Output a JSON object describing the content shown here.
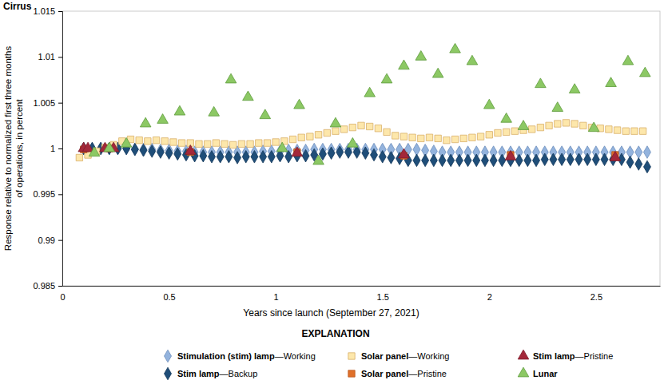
{
  "chart_data": {
    "type": "scatter",
    "title": "Cirrus",
    "xlabel": "Years since launch (September 27, 2021)",
    "ylabel": "Response relative to normalized first three months of operations, in percent",
    "legend_title": "EXPLANATION",
    "legend": "bottom",
    "grid": false,
    "xlim": [
      0,
      2.8
    ],
    "xticks": [
      0,
      0.5,
      1,
      1.5,
      2,
      2.5
    ],
    "ylim": [
      0.985,
      1.015
    ],
    "yticks": [
      0.985,
      0.99,
      0.995,
      1,
      1.005,
      1.01,
      1.015
    ],
    "series": [
      {
        "name": "Stimulation (stim) lamp—Working",
        "color": "#93b3dd",
        "marker": "diamond",
        "x": [
          0.1,
          0.14,
          0.18,
          0.22,
          0.26,
          0.3,
          0.34,
          0.38,
          0.42,
          0.46,
          0.5,
          0.54,
          0.58,
          0.62,
          0.66,
          0.7,
          0.74,
          0.78,
          0.82,
          0.86,
          0.9,
          0.94,
          0.98,
          1.02,
          1.06,
          1.1,
          1.14,
          1.18,
          1.22,
          1.26,
          1.3,
          1.34,
          1.38,
          1.42,
          1.46,
          1.5,
          1.54,
          1.58,
          1.62,
          1.66,
          1.7,
          1.74,
          1.78,
          1.82,
          1.86,
          1.9,
          1.94,
          1.98,
          2.02,
          2.06,
          2.1,
          2.14,
          2.18,
          2.22,
          2.26,
          2.3,
          2.34,
          2.38,
          2.42,
          2.46,
          2.5,
          2.54,
          2.58,
          2.62,
          2.66,
          2.7,
          2.74
        ],
        "values": [
          1.0,
          1.0,
          1.0,
          1.0,
          1.0,
          1.0,
          0.9999,
          0.9999,
          0.9999,
          0.9998,
          0.9998,
          0.9997,
          0.9997,
          0.9996,
          0.9996,
          0.9996,
          0.9996,
          0.9996,
          0.9996,
          0.9996,
          0.9996,
          0.9997,
          0.9997,
          0.9997,
          0.9998,
          0.9998,
          0.9998,
          0.9999,
          0.9999,
          0.9999,
          0.9999,
          0.9999,
          0.9999,
          0.9999,
          0.9999,
          0.9999,
          0.9999,
          0.9999,
          0.9999,
          0.9999,
          0.9998,
          0.9997,
          0.9996,
          0.9996,
          0.9996,
          0.9996,
          0.9996,
          0.9996,
          0.9996,
          0.9996,
          0.9996,
          0.9996,
          0.9996,
          0.9996,
          0.9996,
          0.9996,
          0.9996,
          0.9996,
          0.9996,
          0.9996,
          0.9996,
          0.9996,
          0.9996,
          0.9996,
          0.9996,
          0.9996,
          0.9996
        ]
      },
      {
        "name": "Stim lamp—Backup",
        "color": "#1f4e79",
        "marker": "diamond",
        "x": [
          0.1,
          0.14,
          0.18,
          0.22,
          0.26,
          0.3,
          0.34,
          0.38,
          0.42,
          0.46,
          0.5,
          0.54,
          0.58,
          0.62,
          0.66,
          0.7,
          0.74,
          0.78,
          0.82,
          0.86,
          0.9,
          0.94,
          0.98,
          1.02,
          1.06,
          1.1,
          1.14,
          1.18,
          1.22,
          1.26,
          1.3,
          1.34,
          1.38,
          1.42,
          1.46,
          1.5,
          1.54,
          1.58,
          1.62,
          1.66,
          1.7,
          1.74,
          1.78,
          1.82,
          1.86,
          1.9,
          1.94,
          1.98,
          2.02,
          2.06,
          2.1,
          2.14,
          2.18,
          2.22,
          2.26,
          2.3,
          2.34,
          2.38,
          2.42,
          2.46,
          2.5,
          2.54,
          2.58,
          2.62,
          2.66,
          2.7,
          2.74
        ],
        "values": [
          1.0,
          1.0,
          1.0,
          1.0,
          1.0,
          1.0,
          0.9999,
          0.9998,
          0.9997,
          0.9996,
          0.9995,
          0.9994,
          0.9993,
          0.9992,
          0.9992,
          0.9991,
          0.9991,
          0.9991,
          0.999,
          0.9991,
          0.9991,
          0.9991,
          0.9991,
          0.9992,
          0.9991,
          0.9992,
          0.9992,
          0.9993,
          0.9994,
          0.9995,
          0.9996,
          0.9996,
          0.9996,
          0.9995,
          0.9993,
          0.9991,
          0.999,
          0.9989,
          0.9987,
          0.9987,
          0.9987,
          0.9987,
          0.9987,
          0.9987,
          0.9987,
          0.9987,
          0.9987,
          0.9987,
          0.9987,
          0.9987,
          0.9987,
          0.9987,
          0.9987,
          0.9987,
          0.9988,
          0.9988,
          0.9988,
          0.9988,
          0.9988,
          0.9988,
          0.9988,
          0.9988,
          0.9988,
          0.9988,
          0.9985,
          0.9983,
          0.998
        ]
      },
      {
        "name": "Solar panel—Working",
        "color": "#fde7ab",
        "marker": "square",
        "x": [
          0.08,
          0.12,
          0.16,
          0.2,
          0.24,
          0.28,
          0.32,
          0.36,
          0.4,
          0.44,
          0.48,
          0.52,
          0.56,
          0.6,
          0.64,
          0.68,
          0.72,
          0.76,
          0.8,
          0.84,
          0.88,
          0.92,
          0.96,
          1.0,
          1.04,
          1.08,
          1.12,
          1.16,
          1.2,
          1.24,
          1.28,
          1.32,
          1.36,
          1.4,
          1.44,
          1.48,
          1.52,
          1.56,
          1.6,
          1.64,
          1.68,
          1.72,
          1.76,
          1.8,
          1.84,
          1.88,
          1.92,
          1.96,
          2.0,
          2.04,
          2.08,
          2.12,
          2.16,
          2.2,
          2.24,
          2.28,
          2.32,
          2.36,
          2.4,
          2.44,
          2.48,
          2.52,
          2.56,
          2.6,
          2.64,
          2.68,
          2.72
        ],
        "values": [
          0.999,
          0.9993,
          0.9997,
          1.0001,
          1.0004,
          1.0008,
          1.001,
          1.0009,
          1.0008,
          1.0009,
          1.0008,
          1.0007,
          1.0006,
          1.0006,
          1.0005,
          1.0005,
          1.0006,
          1.0005,
          1.0004,
          1.0005,
          1.0005,
          1.0006,
          1.0006,
          1.0007,
          1.0008,
          1.001,
          1.0012,
          1.0013,
          1.0015,
          1.0017,
          1.0019,
          1.0021,
          1.0023,
          1.0025,
          1.0024,
          1.0022,
          1.0018,
          1.0014,
          1.0013,
          1.0012,
          1.0011,
          1.0012,
          1.0011,
          1.0009,
          1.001,
          1.0011,
          1.0012,
          1.0013,
          1.0015,
          1.0017,
          1.0018,
          1.0019,
          1.002,
          1.0021,
          1.0023,
          1.0025,
          1.0027,
          1.0028,
          1.0027,
          1.0025,
          1.0023,
          1.0022,
          1.0021,
          1.002,
          1.0019,
          1.0019,
          1.0019
        ]
      },
      {
        "name": "Solar panel—Pristine",
        "color": "#e0702a",
        "marker": "square",
        "x": [
          0.1,
          0.22,
          0.6,
          1.1,
          1.6,
          2.1,
          2.59
        ],
        "values": [
          0.9999,
          1.0,
          0.9996,
          0.9996,
          0.9992,
          0.9993,
          0.9993
        ]
      },
      {
        "name": "Stim lamp—Pristine",
        "color": "#a3283a",
        "marker": "triangle",
        "x": [
          0.1,
          0.12,
          0.2,
          0.24,
          0.6,
          1.1,
          1.6,
          2.1,
          2.59
        ],
        "values": [
          1.0,
          1.0,
          1.0,
          1.0,
          0.9997,
          0.9995,
          0.9993,
          0.9991,
          0.999
        ]
      },
      {
        "name": "Lunar",
        "color": "#8cc864",
        "marker": "triangle",
        "x": [
          0.15,
          0.22,
          0.3,
          0.39,
          0.47,
          0.55,
          0.71,
          0.79,
          0.87,
          0.95,
          1.03,
          1.11,
          1.2,
          1.28,
          1.36,
          1.44,
          1.52,
          1.6,
          1.68,
          1.76,
          1.84,
          1.92,
          2.0,
          2.08,
          2.16,
          2.24,
          2.32,
          2.4,
          2.49,
          2.57,
          2.65,
          2.73
        ],
        "values": [
          0.9995,
          1.0,
          1.0005,
          1.0027,
          1.0031,
          1.004,
          1.0039,
          1.0075,
          1.0056,
          1.0036,
          1.0,
          1.0047,
          0.9986,
          1.0027,
          1.0005,
          1.006,
          1.0075,
          1.009,
          1.01,
          1.0081,
          1.0108,
          1.0095,
          1.0047,
          1.0032,
          1.0024,
          1.007,
          1.0044,
          1.0064,
          1.0022,
          1.0071,
          1.0095,
          1.0082
        ]
      }
    ]
  }
}
